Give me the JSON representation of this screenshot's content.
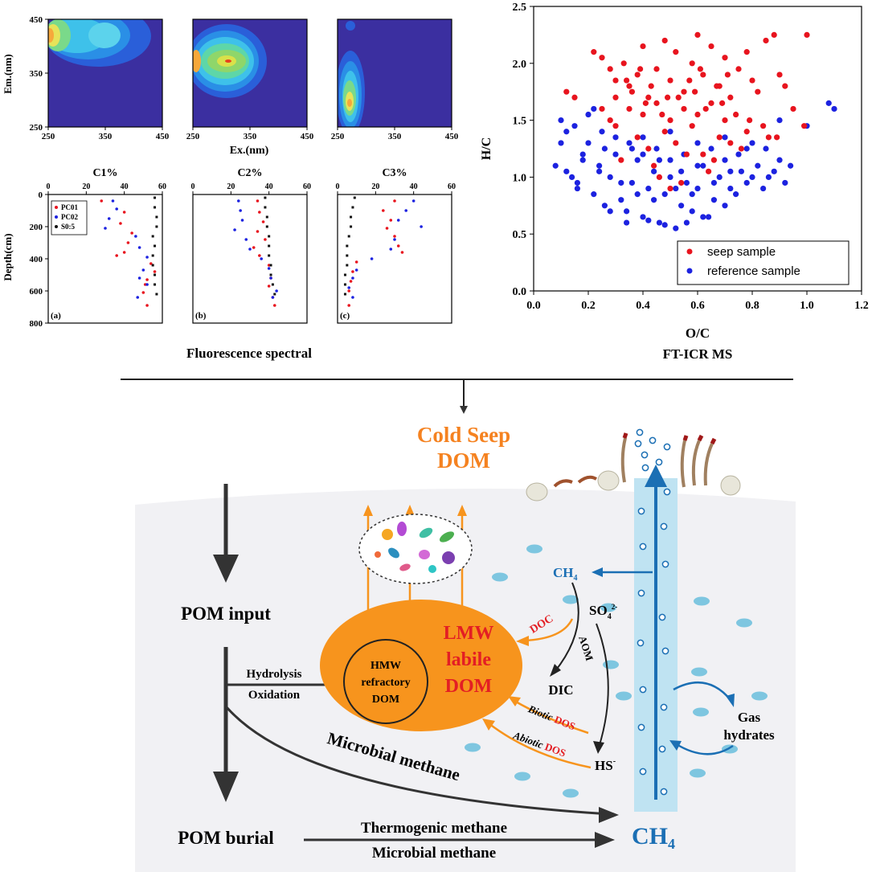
{
  "colors": {
    "seep_red": "#e8141e",
    "reference_blue": "#1c22e0",
    "orange": "#f7941d",
    "cold_seep_title": "#f58220",
    "red_text": "#e31e24",
    "ch4_blue": "#1b6fb4",
    "column_light_blue": "#bfe3f2",
    "sediment_grey": "#f1f1f4",
    "eem_background": "#3b2fa0"
  },
  "eem": {
    "ylabel": "Em.(nm)",
    "xlabel": "Ex.(nm)",
    "yticks": [
      "450",
      "350",
      "250"
    ],
    "ytick_values": [
      450,
      350,
      250
    ],
    "xticks": [
      "250",
      "350",
      "450"
    ],
    "xtick_values": [
      250,
      350,
      450
    ],
    "panels": [
      {
        "peak_ex": 250,
        "peak_em": 430,
        "secondary_peak_ex": 345,
        "secondary_peak_em": 430
      },
      {
        "peak_ex": 305,
        "peak_em": 395
      },
      {
        "peak_ex": 260,
        "peak_em": 310
      }
    ]
  },
  "profiles": {
    "ylabel": "Depth(cm)",
    "xticks": [
      "0",
      "20",
      "40",
      "60"
    ],
    "yticks": [
      "0",
      "200",
      "400",
      "600",
      "800"
    ],
    "ylim": [
      800,
      0
    ],
    "xlim": [
      0,
      60
    ],
    "legend": [
      "PC01",
      "PC02",
      "S0:5"
    ],
    "panels": [
      {
        "title": "C1%",
        "tag": "(a)",
        "PC01": [
          [
            28,
            40
          ],
          [
            40,
            110
          ],
          [
            38,
            180
          ],
          [
            44,
            240
          ],
          [
            42,
            300
          ],
          [
            40,
            360
          ],
          [
            36,
            380
          ],
          [
            54,
            430
          ],
          [
            56,
            480
          ],
          [
            52,
            530
          ],
          [
            51,
            560
          ],
          [
            50,
            610
          ],
          [
            52,
            690
          ]
        ],
        "PC02": [
          [
            34,
            40
          ],
          [
            36,
            90
          ],
          [
            32,
            150
          ],
          [
            30,
            210
          ],
          [
            46,
            260
          ],
          [
            48,
            330
          ],
          [
            52,
            390
          ],
          [
            50,
            470
          ],
          [
            48,
            520
          ],
          [
            52,
            560
          ],
          [
            47,
            640
          ]
        ],
        "S0:5": [
          [
            56,
            20
          ],
          [
            56,
            80
          ],
          [
            57,
            140
          ],
          [
            57,
            200
          ],
          [
            55,
            260
          ],
          [
            56,
            320
          ],
          [
            55,
            380
          ],
          [
            55,
            440
          ],
          [
            56,
            500
          ],
          [
            56,
            560
          ],
          [
            57,
            620
          ]
        ]
      },
      {
        "title": "C2%",
        "tag": "(b)",
        "PC01": [
          [
            34,
            40
          ],
          [
            35,
            110
          ],
          [
            37,
            170
          ],
          [
            34,
            230
          ],
          [
            38,
            280
          ],
          [
            32,
            330
          ],
          [
            35,
            380
          ],
          [
            40,
            440
          ],
          [
            41,
            520
          ],
          [
            40,
            570
          ],
          [
            42,
            640
          ],
          [
            43,
            690
          ]
        ],
        "PC02": [
          [
            24,
            40
          ],
          [
            25,
            100
          ],
          [
            26,
            160
          ],
          [
            22,
            220
          ],
          [
            28,
            280
          ],
          [
            30,
            340
          ],
          [
            36,
            400
          ],
          [
            40,
            460
          ],
          [
            41,
            520
          ],
          [
            44,
            600
          ],
          [
            42,
            640
          ]
        ],
        "S0:5": [
          [
            38,
            20
          ],
          [
            38,
            80
          ],
          [
            39,
            140
          ],
          [
            39,
            200
          ],
          [
            40,
            260
          ],
          [
            40,
            320
          ],
          [
            40,
            380
          ],
          [
            41,
            440
          ],
          [
            41,
            500
          ],
          [
            42,
            560
          ],
          [
            43,
            620
          ]
        ]
      },
      {
        "title": "C3%",
        "tag": "(c)",
        "PC01": [
          [
            30,
            40
          ],
          [
            24,
            100
          ],
          [
            28,
            160
          ],
          [
            26,
            210
          ],
          [
            30,
            260
          ],
          [
            32,
            320
          ],
          [
            34,
            360
          ],
          [
            10,
            420
          ],
          [
            8,
            480
          ],
          [
            7,
            540
          ],
          [
            6,
            600
          ],
          [
            6,
            690
          ]
        ],
        "PC02": [
          [
            40,
            40
          ],
          [
            36,
            100
          ],
          [
            32,
            160
          ],
          [
            44,
            200
          ],
          [
            30,
            280
          ],
          [
            28,
            340
          ],
          [
            18,
            400
          ],
          [
            10,
            470
          ],
          [
            8,
            520
          ],
          [
            6,
            580
          ],
          [
            8,
            640
          ]
        ],
        "S0:5": [
          [
            9,
            20
          ],
          [
            8,
            80
          ],
          [
            7,
            140
          ],
          [
            7,
            200
          ],
          [
            6,
            260
          ],
          [
            5,
            320
          ],
          [
            5,
            380
          ],
          [
            5,
            440
          ],
          [
            4,
            500
          ],
          [
            4,
            560
          ],
          [
            4,
            620
          ]
        ]
      }
    ],
    "caption": "Fluorescence spectral"
  },
  "chart_data": {
    "type": "scatter",
    "xlabel": "O/C",
    "ylabel": "H/C",
    "xlim": [
      0.0,
      1.2
    ],
    "ylim": [
      0.0,
      2.5
    ],
    "xticks": [
      "0.0",
      "0.2",
      "0.4",
      "0.6",
      "0.8",
      "1.0",
      "1.2"
    ],
    "yticks": [
      "0.0",
      "0.5",
      "1.0",
      "1.5",
      "2.0",
      "2.5"
    ],
    "legend_position": "bottom-right",
    "series": [
      {
        "name": "seep sample",
        "color": "#e8141e",
        "x": [
          0.12,
          0.15,
          0.22,
          0.25,
          0.28,
          0.3,
          0.33,
          0.35,
          0.38,
          0.4,
          0.42,
          0.45,
          0.48,
          0.5,
          0.52,
          0.55,
          0.58,
          0.6,
          0.62,
          0.65,
          0.68,
          0.7,
          0.72,
          0.75,
          0.78,
          0.8,
          0.82,
          0.85,
          0.88,
          0.9,
          0.92,
          0.95,
          0.99,
          1.0,
          0.35,
          0.4,
          0.45,
          0.5,
          0.55,
          0.6,
          0.65,
          0.7,
          0.3,
          0.38,
          0.48,
          0.58,
          0.68,
          0.78,
          0.42,
          0.52,
          0.62,
          0.72,
          0.32,
          0.44,
          0.56,
          0.66,
          0.76,
          0.46,
          0.54,
          0.64,
          0.25,
          0.3,
          0.36,
          0.41,
          0.47,
          0.53,
          0.59,
          0.63,
          0.69,
          0.74,
          0.79,
          0.84,
          0.89,
          0.34,
          0.39,
          0.43,
          0.49,
          0.57,
          0.61,
          0.67,
          0.71,
          0.86,
          0.28,
          0.5
        ],
        "y": [
          1.75,
          1.7,
          2.1,
          2.05,
          1.95,
          1.85,
          2.0,
          1.8,
          1.9,
          2.15,
          1.7,
          1.95,
          2.2,
          1.85,
          2.1,
          1.75,
          2.0,
          2.25,
          1.9,
          2.15,
          1.8,
          2.05,
          1.7,
          1.95,
          2.1,
          1.85,
          1.75,
          2.2,
          2.25,
          1.9,
          1.8,
          1.6,
          1.45,
          2.25,
          1.6,
          1.55,
          1.65,
          1.5,
          1.6,
          1.55,
          1.65,
          1.5,
          1.45,
          1.35,
          1.4,
          1.45,
          1.35,
          1.4,
          1.25,
          1.3,
          1.2,
          1.3,
          1.15,
          1.1,
          1.2,
          1.15,
          1.25,
          1.0,
          0.95,
          1.05,
          1.6,
          1.7,
          1.75,
          1.65,
          1.55,
          1.7,
          1.75,
          1.6,
          1.65,
          1.55,
          1.5,
          1.45,
          1.35,
          1.85,
          1.95,
          1.8,
          1.7,
          1.85,
          1.95,
          1.8,
          1.9,
          1.35,
          1.5,
          0.9
        ]
      },
      {
        "name": "reference sample",
        "color": "#1c22e0",
        "x": [
          0.08,
          0.1,
          0.12,
          0.14,
          0.16,
          0.18,
          0.2,
          0.22,
          0.24,
          0.26,
          0.28,
          0.3,
          0.32,
          0.34,
          0.36,
          0.38,
          0.4,
          0.42,
          0.44,
          0.46,
          0.48,
          0.5,
          0.52,
          0.54,
          0.56,
          0.58,
          0.6,
          0.62,
          0.64,
          0.66,
          0.68,
          0.7,
          0.72,
          0.74,
          0.76,
          0.78,
          0.8,
          0.82,
          0.84,
          0.86,
          0.88,
          0.9,
          0.92,
          0.94,
          1.0,
          1.08,
          1.1,
          0.1,
          0.15,
          0.2,
          0.25,
          0.3,
          0.35,
          0.4,
          0.45,
          0.5,
          0.55,
          0.6,
          0.65,
          0.7,
          0.75,
          0.8,
          0.85,
          0.9,
          0.12,
          0.18,
          0.24,
          0.32,
          0.38,
          0.44,
          0.52,
          0.58,
          0.66,
          0.72,
          0.28,
          0.34,
          0.42,
          0.48,
          0.56,
          0.62,
          0.36,
          0.46,
          0.54,
          0.4,
          0.5,
          0.6,
          0.22,
          0.16,
          0.26,
          0.7,
          0.78
        ],
        "y": [
          1.1,
          1.3,
          1.4,
          1.0,
          0.95,
          1.2,
          1.3,
          0.85,
          1.1,
          0.75,
          1.0,
          1.2,
          0.8,
          0.7,
          0.95,
          1.15,
          0.65,
          0.9,
          1.05,
          0.6,
          0.85,
          1.0,
          0.55,
          0.75,
          0.95,
          0.7,
          0.9,
          1.1,
          0.65,
          0.8,
          1.0,
          0.75,
          0.9,
          0.85,
          1.05,
          0.95,
          1.0,
          1.1,
          0.9,
          1.0,
          1.05,
          1.15,
          0.95,
          1.1,
          1.45,
          1.65,
          1.6,
          1.5,
          1.45,
          1.55,
          1.4,
          1.35,
          1.3,
          1.2,
          1.25,
          1.15,
          1.2,
          1.1,
          1.25,
          1.15,
          1.2,
          1.3,
          1.25,
          1.5,
          1.05,
          1.15,
          1.05,
          0.95,
          0.85,
          0.8,
          0.9,
          0.85,
          0.95,
          1.05,
          0.7,
          0.6,
          0.62,
          0.58,
          0.6,
          0.65,
          1.25,
          1.15,
          1.05,
          1.35,
          1.4,
          1.3,
          1.6,
          0.9,
          1.25,
          1.35,
          1.25
        ]
      }
    ],
    "caption": "FT-ICR MS"
  },
  "diagram": {
    "title_line1": "Cold Seep",
    "title_line2": "DOM",
    "pom_input": "POM input",
    "pom_burial": "POM burial",
    "hydrolysis": "Hydrolysis",
    "oxidation": "Oxidation",
    "hmw_line1": "HMW",
    "hmw_line2": "refractory",
    "hmw_line3": "DOM",
    "lmw_line1": "LMW",
    "lmw_line2": "labile",
    "lmw_line3": "DOM",
    "ch4_small": "CH",
    "ch4_small_sub": "4",
    "so4": "SO",
    "so4_sub": "4",
    "so4_sup": "2-",
    "doc": "DOC",
    "aom": "AOM",
    "dic": "DIC",
    "hs": "HS",
    "hs_sup": "-",
    "biotic": "Biotic",
    "abiotic": "Abiotic",
    "dos": "DOS",
    "microbial_methane_curve": "Microbial methane",
    "thermogenic": "Thermogenic methane",
    "microbial_methane_bottom": "Microbial methane",
    "ch4_big": "CH",
    "ch4_big_sub": "4",
    "gas_line1": "Gas",
    "gas_line2": "hydrates"
  }
}
